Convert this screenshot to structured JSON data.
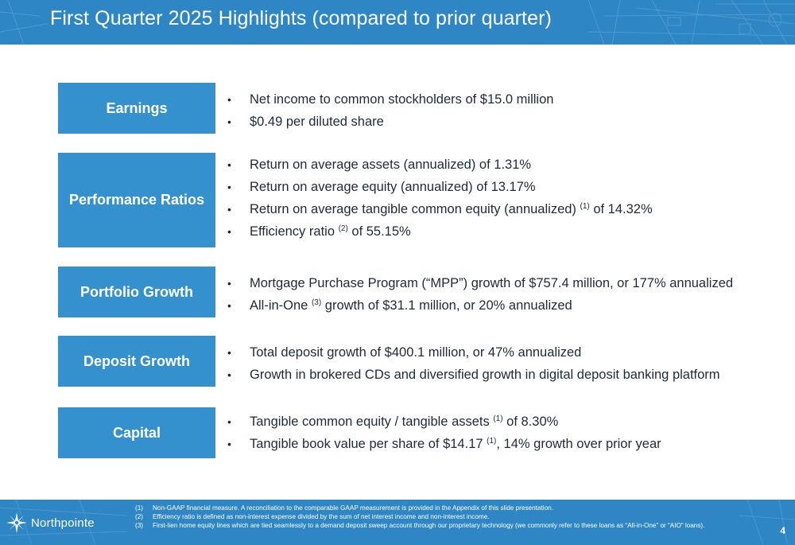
{
  "header": {
    "title": "First Quarter 2025 Highlights (compared to prior quarter)"
  },
  "sections": [
    {
      "label": "Earnings",
      "bullets": [
        {
          "text": "Net income to common stockholders of $15.0 million"
        },
        {
          "text": "$0.49 per diluted share"
        }
      ]
    },
    {
      "label": "Performance Ratios",
      "bullets": [
        {
          "text": "Return on average assets (annualized) of 1.31%"
        },
        {
          "text": "Return on average equity (annualized) of 13.17%"
        },
        {
          "pre": "Return on average tangible common equity (annualized) ",
          "sup": "(1)",
          "post": " of 14.32%"
        },
        {
          "pre": "Efficiency ratio ",
          "sup": "(2)",
          "post": " of 55.15%"
        }
      ]
    },
    {
      "label": "Portfolio Growth",
      "bullets": [
        {
          "text": "Mortgage Purchase Program (“MPP”) growth of $757.4 million, or 177% annualized"
        },
        {
          "pre": "All-in-One ",
          "sup": "(3)",
          "post": " growth of $31.1 million, or 20% annualized"
        }
      ]
    },
    {
      "label": "Deposit Growth",
      "bullets": [
        {
          "text": "Total deposit growth of $400.1 million, or 47% annualized"
        },
        {
          "text": "Growth in brokered CDs and diversified growth in digital deposit banking platform"
        }
      ]
    },
    {
      "label": "Capital",
      "bullets": [
        {
          "pre": "Tangible common equity / tangible assets ",
          "sup": "(1)",
          "post": " of 8.30%"
        },
        {
          "pre": "Tangible book value per share of $14.17 ",
          "sup": "(1)",
          "post": ", 14% growth over prior year"
        }
      ]
    }
  ],
  "bullet_char": "•",
  "footer": {
    "logo_text": "Northpointe",
    "notes": [
      {
        "num": "(1)",
        "text": "Non-GAAP financial measure. A reconciliation to the comparable GAAP measurement is provided in the Appendix of this slide presentation."
      },
      {
        "num": "(2)",
        "text": "Efficiency ratio is defined as non-interest expense divided by the sum of net interest income and non-interest income."
      },
      {
        "num": "(3)",
        "text": "First-lien home equity lines which are tied seamlessly to a demand deposit sweep account through our proprietary technology (we commonly refer to these loans as “All-in-One” or “AIO” loans)."
      }
    ],
    "page_number": "4"
  },
  "colors": {
    "header_bg": "#2f86c4",
    "label_box": "#3591cd",
    "text": "#1e2a38"
  }
}
